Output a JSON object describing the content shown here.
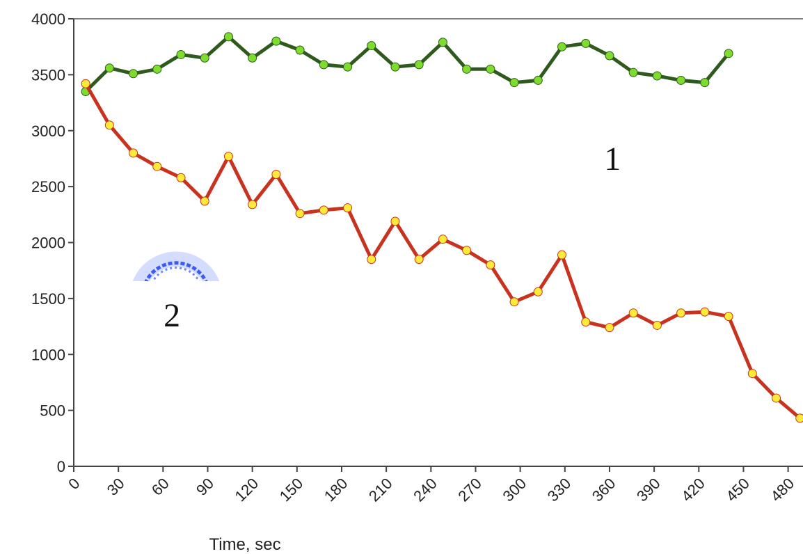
{
  "chart_data": {
    "type": "line",
    "title": "",
    "xlabel": "Time, sec",
    "ylabel": "",
    "xlim": [
      0,
      490
    ],
    "ylim": [
      0,
      4000
    ],
    "x_ticks": [
      0,
      30,
      60,
      90,
      120,
      150,
      180,
      210,
      240,
      270,
      300,
      330,
      360,
      390,
      420,
      450,
      480
    ],
    "x_tick_labels": [
      "0",
      "30",
      "60",
      "90",
      "120",
      "150",
      "180",
      "210",
      "240",
      "270",
      "300",
      "330",
      "360",
      "390",
      "420",
      "450",
      "480"
    ],
    "y_ticks": [
      0,
      500,
      1000,
      1500,
      2000,
      2500,
      3000,
      3500,
      4000
    ],
    "y_tick_labels": [
      "0",
      "500",
      "1000",
      "1500",
      "2000",
      "2500",
      "3000",
      "3500",
      "4000"
    ],
    "grid": false,
    "series": [
      {
        "label": "1",
        "color": "#2f5a1e",
        "marker_color": "#7ddc2e",
        "label_position": {
          "x": 362,
          "y": 2650
        },
        "x": [
          8,
          24,
          40,
          56,
          72,
          88,
          104,
          120,
          136,
          152,
          168,
          184,
          200,
          216,
          232,
          248,
          264,
          280,
          296,
          312,
          328,
          344,
          360,
          376,
          392,
          408,
          424,
          440
        ],
        "y": [
          3350,
          3560,
          3510,
          3550,
          3680,
          3650,
          3840,
          3650,
          3800,
          3720,
          3590,
          3570,
          3760,
          3570,
          3590,
          3790,
          3550,
          3550,
          3430,
          3450,
          3750,
          3780,
          3670,
          3520,
          3490,
          3450,
          3430,
          3690
        ]
      },
      {
        "label": "2",
        "color": "#c8321e",
        "marker_color": "#ffea3a",
        "label_position": {
          "x": 66,
          "y": 1250
        },
        "x": [
          8,
          24,
          40,
          56,
          72,
          88,
          104,
          120,
          136,
          152,
          168,
          184,
          200,
          216,
          232,
          248,
          264,
          280,
          296,
          312,
          328,
          344,
          360,
          376,
          392,
          408,
          424,
          440,
          456,
          472,
          488
        ],
        "y": [
          3420,
          3050,
          2800,
          2680,
          2580,
          2370,
          2770,
          2340,
          2610,
          2260,
          2290,
          2310,
          1850,
          2190,
          1850,
          2030,
          1930,
          1800,
          1470,
          1560,
          1890,
          1290,
          1240,
          1370,
          1260,
          1370,
          1380,
          1340,
          830,
          610,
          430
        ]
      }
    ]
  }
}
